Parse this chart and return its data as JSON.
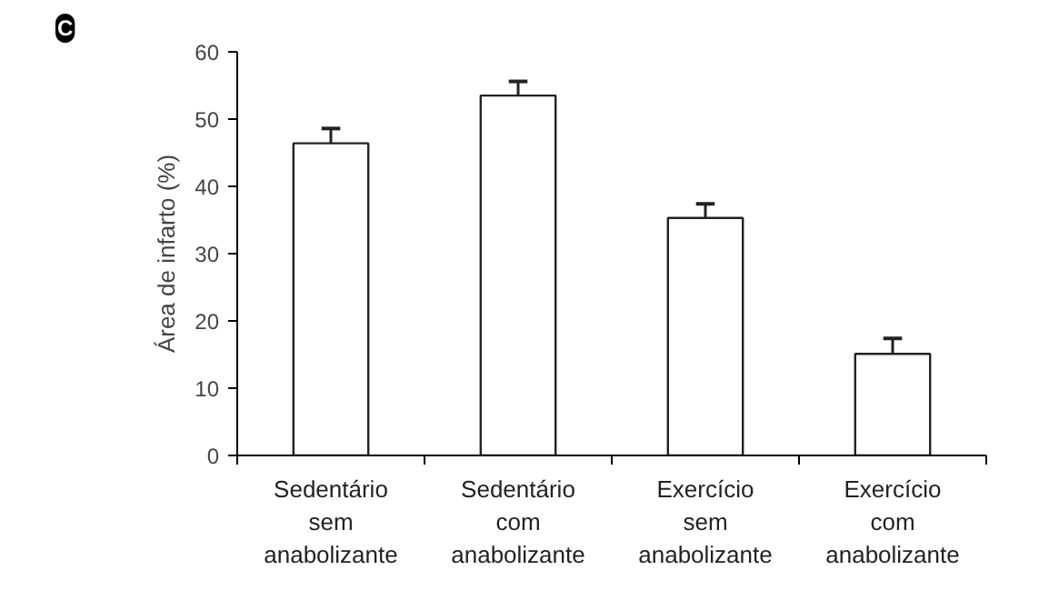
{
  "chart_data": {
    "type": "bar",
    "ylabel": "Área de infarto (%)",
    "categories": [
      "Sedentário\nsem\nanabolizante",
      "Sedentário\ncom\nanabolizante",
      "Exercício\nsem\nanabolizante",
      "Exercício\ncom\nanabolizante"
    ],
    "values": [
      46.4,
      53.5,
      35.3,
      15.1
    ],
    "errors": [
      [
        46.4,
        48.6
      ],
      [
        53.5,
        55.6
      ],
      [
        35.3,
        37.4
      ],
      [
        15.1,
        17.4
      ]
    ],
    "color": "#ffffff",
    "ylim": [
      0,
      60
    ],
    "yticks": [
      0,
      10,
      20,
      30,
      40,
      50,
      60
    ],
    "annotations": [
      "C"
    ]
  }
}
